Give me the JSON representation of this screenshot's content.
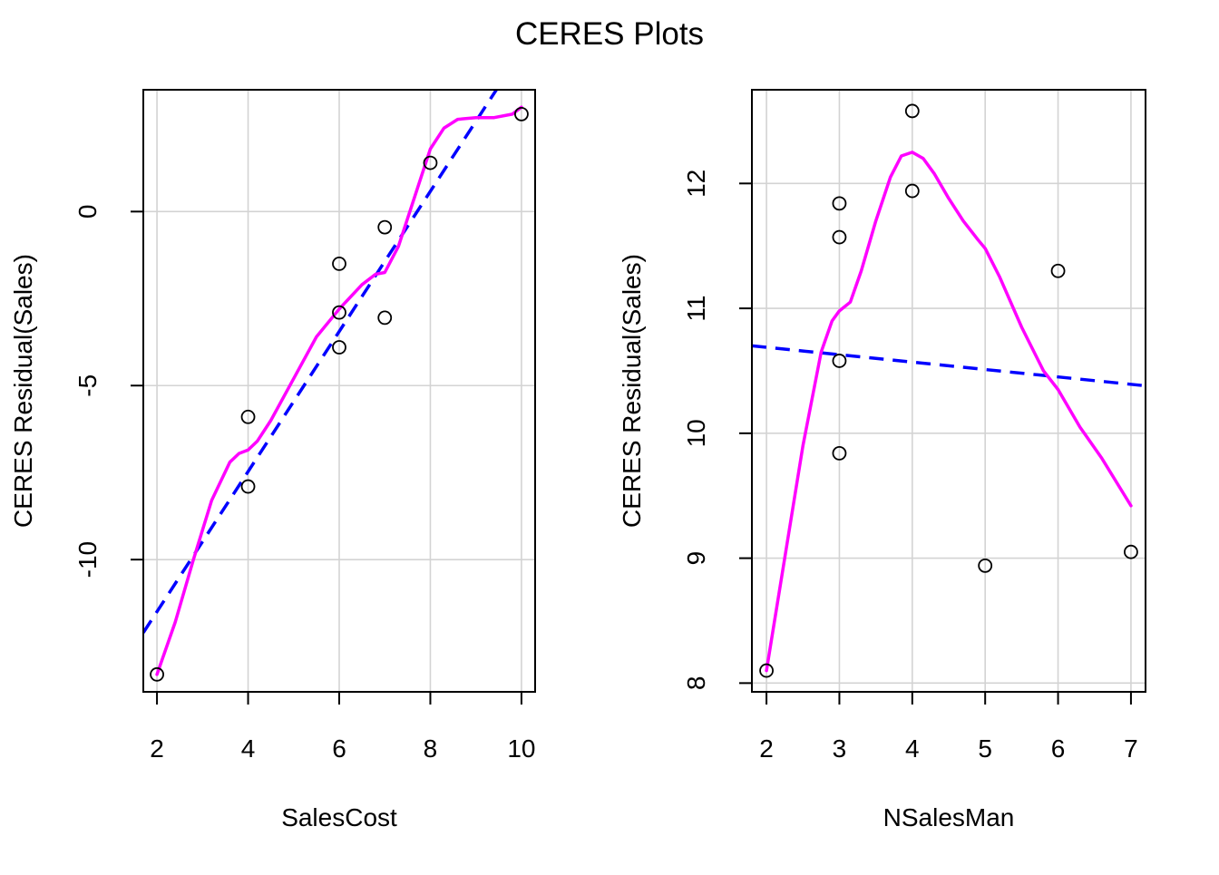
{
  "page": {
    "title": "CERES Plots"
  },
  "colors": {
    "background": "#ffffff",
    "grid": "#d3d3d3",
    "points": "#000000",
    "smooth": "#ff00ff",
    "fit": "#0000ff",
    "frame": "#000000"
  },
  "chart_data": [
    {
      "type": "scatter",
      "xlabel": "SalesCost",
      "ylabel": "CERES Residual(Sales)",
      "xlim": [
        1.7,
        10.3
      ],
      "ylim": [
        -13.8,
        3.5
      ],
      "xticks": [
        2,
        4,
        6,
        8,
        10
      ],
      "yticks": [
        0,
        -5,
        -10
      ],
      "grid": true,
      "points": [
        {
          "x": 2,
          "y": -13.3
        },
        {
          "x": 4,
          "y": -5.9
        },
        {
          "x": 4,
          "y": -7.9
        },
        {
          "x": 6,
          "y": -1.5
        },
        {
          "x": 6,
          "y": -2.9
        },
        {
          "x": 6,
          "y": -3.9
        },
        {
          "x": 7,
          "y": -0.45
        },
        {
          "x": 7,
          "y": -3.05
        },
        {
          "x": 8,
          "y": 1.4
        },
        {
          "x": 10,
          "y": 2.8
        }
      ],
      "fit_line": {
        "style": "dashed",
        "color": "#0000ff",
        "x": [
          1.7,
          9.45
        ],
        "y": [
          -12.1,
          3.5
        ]
      },
      "smooth_line": {
        "style": "solid",
        "color": "#ff00ff",
        "x": [
          2.0,
          2.4,
          2.8,
          3.2,
          3.6,
          3.8,
          4.0,
          4.2,
          4.5,
          5.0,
          5.5,
          6.0,
          6.5,
          6.8,
          7.0,
          7.3,
          7.6,
          7.8,
          8.0,
          8.3,
          8.6,
          9.0,
          9.4,
          9.8,
          10.0
        ],
        "y": [
          -13.3,
          -11.8,
          -10.0,
          -8.3,
          -7.2,
          -6.95,
          -6.85,
          -6.6,
          -6.0,
          -4.8,
          -3.6,
          -2.8,
          -2.1,
          -1.8,
          -1.75,
          -1.0,
          0.2,
          1.0,
          1.8,
          2.4,
          2.65,
          2.7,
          2.7,
          2.8,
          3.0
        ]
      }
    },
    {
      "type": "scatter",
      "xlabel": "NSalesMan",
      "ylabel": "CERES Residual(Sales)",
      "xlim": [
        1.8,
        7.2
      ],
      "ylim": [
        7.93,
        12.75
      ],
      "xticks": [
        2,
        3,
        4,
        5,
        6,
        7
      ],
      "yticks": [
        8,
        9,
        10,
        11,
        12
      ],
      "grid": true,
      "points": [
        {
          "x": 2,
          "y": 8.1
        },
        {
          "x": 3,
          "y": 11.84
        },
        {
          "x": 3,
          "y": 11.57
        },
        {
          "x": 3,
          "y": 10.58
        },
        {
          "x": 3,
          "y": 9.84
        },
        {
          "x": 4,
          "y": 12.58
        },
        {
          "x": 4,
          "y": 11.94
        },
        {
          "x": 5,
          "y": 8.94
        },
        {
          "x": 6,
          "y": 11.3
        },
        {
          "x": 7,
          "y": 9.05
        }
      ],
      "fit_line": {
        "style": "dashed",
        "color": "#0000ff",
        "x": [
          1.8,
          7.2
        ],
        "y": [
          10.7,
          10.38
        ]
      },
      "smooth_line": {
        "style": "solid",
        "color": "#ff00ff",
        "x": [
          2.0,
          2.25,
          2.5,
          2.75,
          2.9,
          3.0,
          3.15,
          3.3,
          3.5,
          3.7,
          3.85,
          4.0,
          4.15,
          4.3,
          4.5,
          4.7,
          4.9,
          5.0,
          5.2,
          5.5,
          5.8,
          6.0,
          6.3,
          6.6,
          7.0
        ],
        "y": [
          8.1,
          9.0,
          9.9,
          10.65,
          10.9,
          10.98,
          11.05,
          11.3,
          11.7,
          12.05,
          12.22,
          12.25,
          12.2,
          12.08,
          11.88,
          11.7,
          11.55,
          11.48,
          11.25,
          10.85,
          10.5,
          10.35,
          10.05,
          9.8,
          9.42
        ]
      }
    }
  ]
}
